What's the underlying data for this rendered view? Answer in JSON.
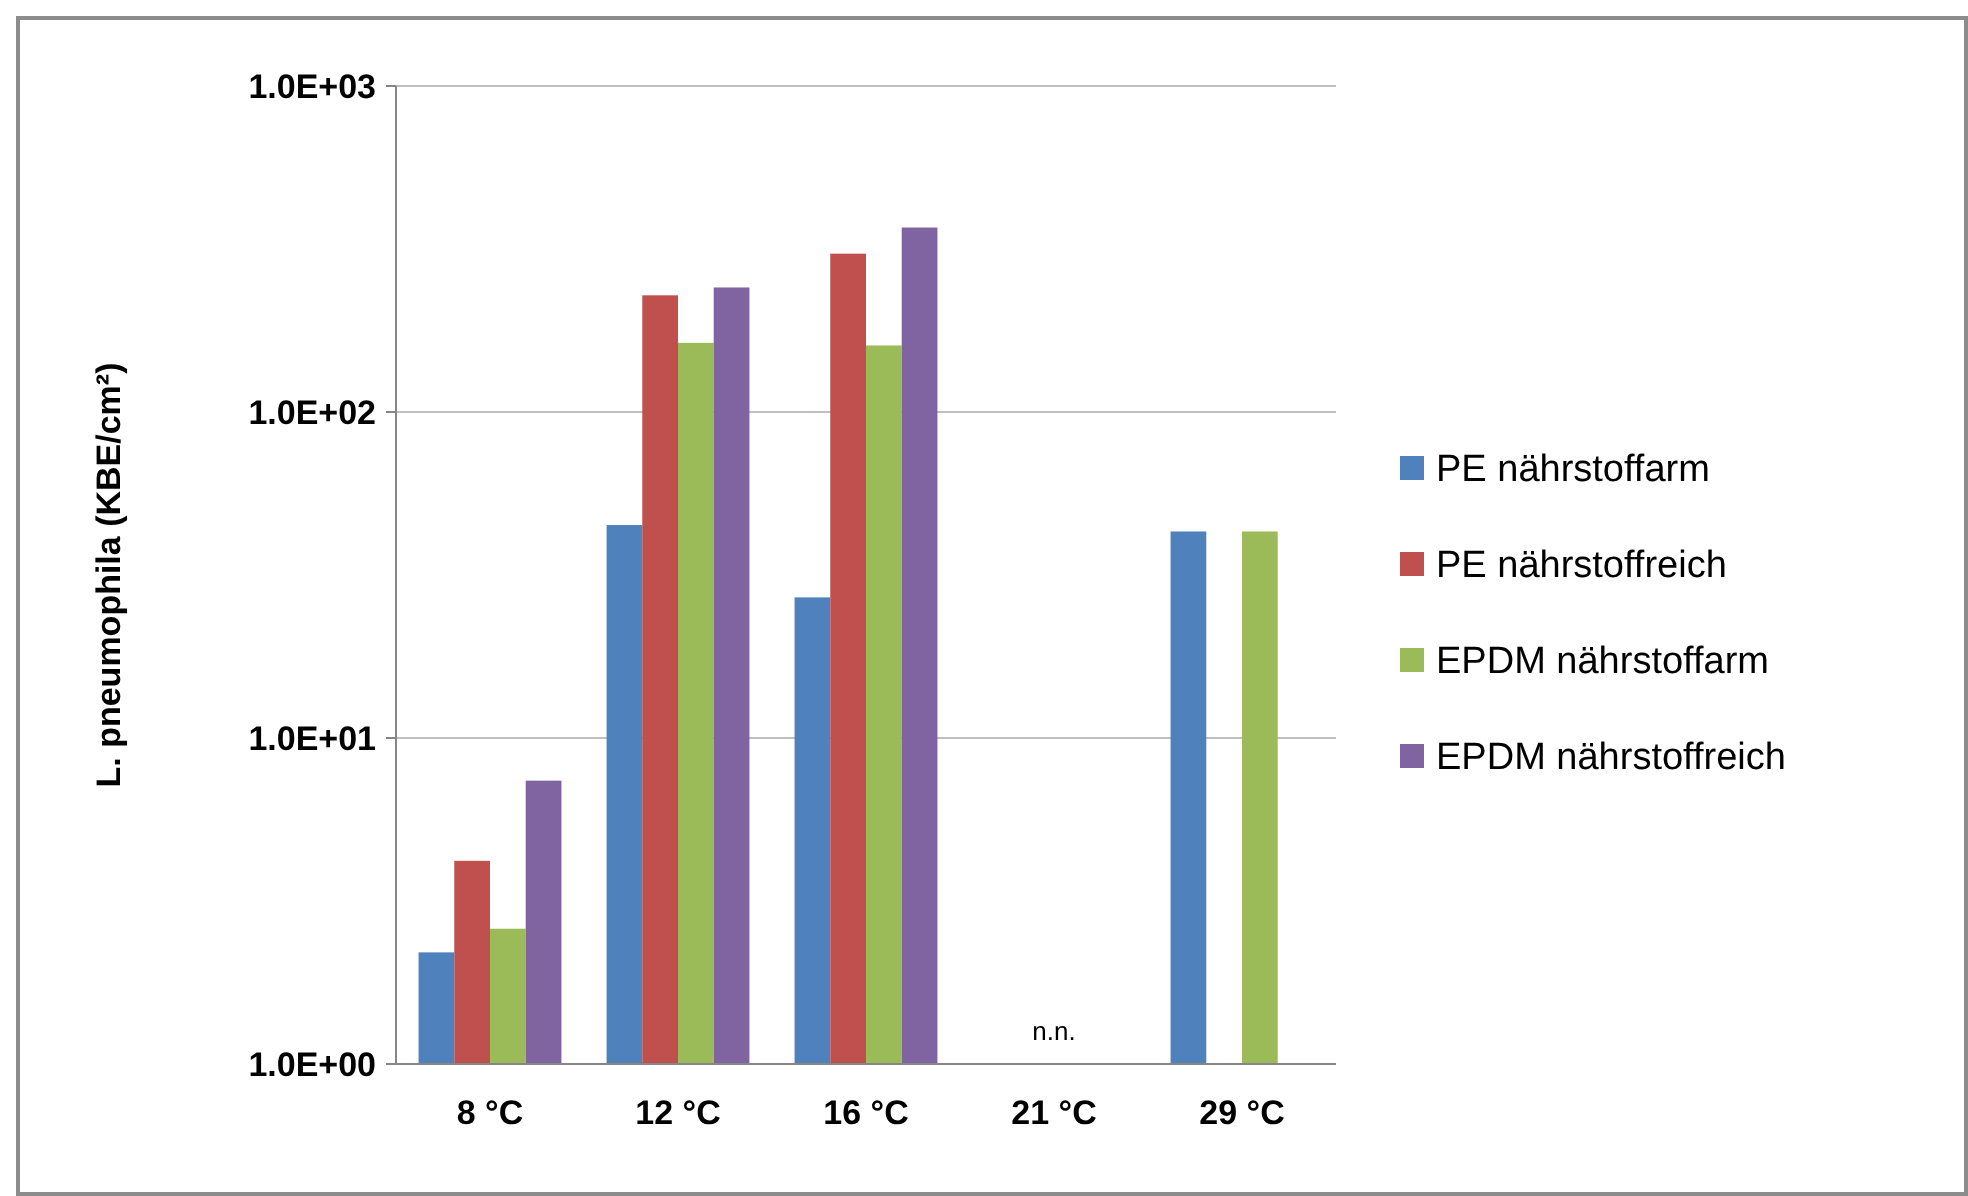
{
  "chart_data": {
    "type": "bar",
    "ylabel": "L. pneumophila (KBE/cm²)",
    "categories": [
      "8 °C",
      "12 °C",
      "16 °C",
      "21 °C",
      "29 °C"
    ],
    "series": [
      {
        "name": "PE nährstoffarm",
        "color": "#4f81bd",
        "values": [
          2.2,
          45,
          27,
          null,
          43
        ]
      },
      {
        "name": "PE nährstoffreich",
        "color": "#c0504d",
        "values": [
          4.2,
          228,
          306,
          null,
          null
        ]
      },
      {
        "name": "EPDM nährstoffarm",
        "color": "#9bbb59",
        "values": [
          2.6,
          163,
          160,
          null,
          43
        ]
      },
      {
        "name": "EPDM nährstoffreich",
        "color": "#8064a2",
        "values": [
          7.4,
          241,
          368,
          null,
          null
        ]
      }
    ],
    "log": true,
    "ylim": [
      1,
      1000
    ],
    "yticks": [
      {
        "value": 1,
        "label": "1.0E+00"
      },
      {
        "value": 10,
        "label": "1.0E+01"
      },
      {
        "value": 100,
        "label": "1.0E+02"
      },
      {
        "value": 1000,
        "label": "1.0E+03"
      }
    ],
    "grid": "y",
    "legend": "right",
    "annotations": [
      "n.n."
    ]
  }
}
